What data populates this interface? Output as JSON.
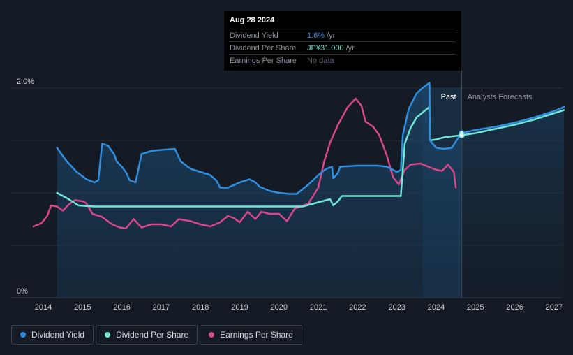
{
  "tooltip": {
    "date": "Aug 28 2024",
    "rows": [
      {
        "label": "Dividend Yield",
        "value": "1.6%",
        "unit": "/yr"
      },
      {
        "label": "Dividend Per Share",
        "value": "JP¥31.000",
        "unit": "/yr"
      },
      {
        "label": "Earnings Per Share",
        "value": "No data"
      }
    ]
  },
  "labels": {
    "past": "Past",
    "forecast": "Analysts Forecasts"
  },
  "legend": [
    {
      "label": "Dividend Yield",
      "color": "#2e8fe0"
    },
    {
      "label": "Dividend Per Share",
      "color": "#6fe7d6"
    },
    {
      "label": "Earnings Per Share",
      "color": "#d9468a"
    }
  ],
  "chart_data": {
    "type": "line",
    "x_ticks": [
      "2014",
      "2015",
      "2016",
      "2017",
      "2018",
      "2019",
      "2020",
      "2021",
      "2022",
      "2023",
      "2024",
      "2025",
      "2026",
      "2027"
    ],
    "y_ticks": [
      "0%",
      "2.0%"
    ],
    "ylim": [
      0,
      2.0
    ],
    "xlim": [
      2013.6,
      2027.25
    ],
    "forecast_start": 2024.65,
    "past_shade_start": 2023.65,
    "series": [
      {
        "name": "Dividend Yield",
        "color": "#2e8fe0",
        "points": [
          [
            2014.35,
            1.43
          ],
          [
            2014.6,
            1.3
          ],
          [
            2014.85,
            1.2
          ],
          [
            2015.1,
            1.13
          ],
          [
            2015.3,
            1.1
          ],
          [
            2015.4,
            1.12
          ],
          [
            2015.5,
            1.47
          ],
          [
            2015.65,
            1.45
          ],
          [
            2015.8,
            1.37
          ],
          [
            2015.87,
            1.3
          ],
          [
            2016.0,
            1.25
          ],
          [
            2016.1,
            1.2
          ],
          [
            2016.2,
            1.12
          ],
          [
            2016.35,
            1.1
          ],
          [
            2016.5,
            1.37
          ],
          [
            2016.75,
            1.4
          ],
          [
            2017.0,
            1.41
          ],
          [
            2017.35,
            1.42
          ],
          [
            2017.5,
            1.3
          ],
          [
            2017.75,
            1.23
          ],
          [
            2018.0,
            1.2
          ],
          [
            2018.25,
            1.17
          ],
          [
            2018.4,
            1.12
          ],
          [
            2018.5,
            1.05
          ],
          [
            2018.7,
            1.05
          ],
          [
            2019.0,
            1.1
          ],
          [
            2019.25,
            1.13
          ],
          [
            2019.4,
            1.1
          ],
          [
            2019.5,
            1.06
          ],
          [
            2019.75,
            1.02
          ],
          [
            2020.0,
            1.0
          ],
          [
            2020.25,
            0.99
          ],
          [
            2020.45,
            0.99
          ],
          [
            2020.75,
            1.08
          ],
          [
            2021.0,
            1.17
          ],
          [
            2021.2,
            1.23
          ],
          [
            2021.35,
            1.25
          ],
          [
            2021.38,
            1.14
          ],
          [
            2021.5,
            1.19
          ],
          [
            2021.55,
            1.25
          ],
          [
            2022.0,
            1.26
          ],
          [
            2022.5,
            1.26
          ],
          [
            2022.75,
            1.25
          ],
          [
            2023.0,
            1.2
          ],
          [
            2023.1,
            1.22
          ],
          [
            2023.15,
            1.55
          ],
          [
            2023.3,
            1.8
          ],
          [
            2023.5,
            1.95
          ],
          [
            2023.65,
            2.0
          ],
          [
            2023.83,
            2.05
          ],
          [
            2023.84,
            1.5
          ],
          [
            2024.0,
            1.43
          ],
          [
            2024.2,
            1.42
          ],
          [
            2024.4,
            1.43
          ],
          [
            2024.55,
            1.52
          ],
          [
            2024.65,
            1.57
          ]
        ]
      },
      {
        "name": "Dividend Per Share",
        "color": "#6fe7d6",
        "points": [
          [
            2014.35,
            1.0
          ],
          [
            2014.6,
            0.95
          ],
          [
            2014.9,
            0.88
          ],
          [
            2015.3,
            0.87
          ],
          [
            2016,
            0.87
          ],
          [
            2017,
            0.87
          ],
          [
            2018,
            0.87
          ],
          [
            2019,
            0.87
          ],
          [
            2020,
            0.87
          ],
          [
            2020.6,
            0.87
          ],
          [
            2020.8,
            0.89
          ],
          [
            2021.0,
            0.91
          ],
          [
            2021.3,
            0.94
          ],
          [
            2021.38,
            0.88
          ],
          [
            2021.5,
            0.92
          ],
          [
            2021.6,
            0.97
          ],
          [
            2022,
            0.97
          ],
          [
            2022.5,
            0.97
          ],
          [
            2023.1,
            0.97
          ],
          [
            2023.2,
            1.47
          ],
          [
            2023.35,
            1.62
          ],
          [
            2023.5,
            1.72
          ],
          [
            2023.83,
            1.82
          ],
          [
            2023.84,
            1.5
          ],
          [
            2024.0,
            1.51
          ],
          [
            2024.2,
            1.53
          ],
          [
            2024.65,
            1.55
          ]
        ]
      },
      {
        "name": "Earnings Per Share",
        "color": "#d9468a",
        "points": [
          [
            2013.75,
            0.68
          ],
          [
            2013.95,
            0.71
          ],
          [
            2014.1,
            0.78
          ],
          [
            2014.2,
            0.88
          ],
          [
            2014.35,
            0.87
          ],
          [
            2014.5,
            0.83
          ],
          [
            2014.65,
            0.89
          ],
          [
            2014.8,
            0.93
          ],
          [
            2015.0,
            0.92
          ],
          [
            2015.1,
            0.9
          ],
          [
            2015.25,
            0.8
          ],
          [
            2015.5,
            0.77
          ],
          [
            2015.75,
            0.7
          ],
          [
            2015.95,
            0.67
          ],
          [
            2016.1,
            0.66
          ],
          [
            2016.3,
            0.75
          ],
          [
            2016.5,
            0.67
          ],
          [
            2016.75,
            0.7
          ],
          [
            2017.0,
            0.7
          ],
          [
            2017.25,
            0.68
          ],
          [
            2017.45,
            0.75
          ],
          [
            2017.75,
            0.73
          ],
          [
            2018.0,
            0.7
          ],
          [
            2018.25,
            0.68
          ],
          [
            2018.5,
            0.72
          ],
          [
            2018.7,
            0.78
          ],
          [
            2018.85,
            0.76
          ],
          [
            2019.0,
            0.72
          ],
          [
            2019.2,
            0.82
          ],
          [
            2019.4,
            0.75
          ],
          [
            2019.55,
            0.82
          ],
          [
            2019.75,
            0.8
          ],
          [
            2020.0,
            0.8
          ],
          [
            2020.2,
            0.73
          ],
          [
            2020.4,
            0.85
          ],
          [
            2020.55,
            0.87
          ],
          [
            2020.75,
            0.9
          ],
          [
            2021.0,
            1.05
          ],
          [
            2021.15,
            1.3
          ],
          [
            2021.3,
            1.48
          ],
          [
            2021.5,
            1.65
          ],
          [
            2021.75,
            1.82
          ],
          [
            2021.95,
            1.9
          ],
          [
            2022.1,
            1.83
          ],
          [
            2022.2,
            1.68
          ],
          [
            2022.4,
            1.63
          ],
          [
            2022.55,
            1.55
          ],
          [
            2022.75,
            1.35
          ],
          [
            2022.9,
            1.15
          ],
          [
            2023.05,
            1.08
          ],
          [
            2023.2,
            1.22
          ],
          [
            2023.35,
            1.27
          ],
          [
            2023.6,
            1.28
          ],
          [
            2023.8,
            1.25
          ],
          [
            2024.0,
            1.22
          ],
          [
            2024.15,
            1.21
          ],
          [
            2024.3,
            1.27
          ],
          [
            2024.45,
            1.2
          ],
          [
            2024.5,
            1.05
          ]
        ]
      },
      {
        "name": "Dividend Yield Forecast",
        "color": "#2e8fe0",
        "points": [
          [
            2024.65,
            1.57
          ],
          [
            2025.0,
            1.6
          ],
          [
            2025.5,
            1.63
          ],
          [
            2026.0,
            1.67
          ],
          [
            2026.5,
            1.72
          ],
          [
            2027.0,
            1.78
          ],
          [
            2027.25,
            1.82
          ]
        ]
      },
      {
        "name": "Dividend Per Share Forecast",
        "color": "#6fe7d6",
        "points": [
          [
            2024.65,
            1.55
          ],
          [
            2025.0,
            1.57
          ],
          [
            2025.5,
            1.61
          ],
          [
            2026.0,
            1.65
          ],
          [
            2026.5,
            1.7
          ],
          [
            2027.0,
            1.76
          ],
          [
            2027.25,
            1.79
          ]
        ]
      }
    ]
  }
}
